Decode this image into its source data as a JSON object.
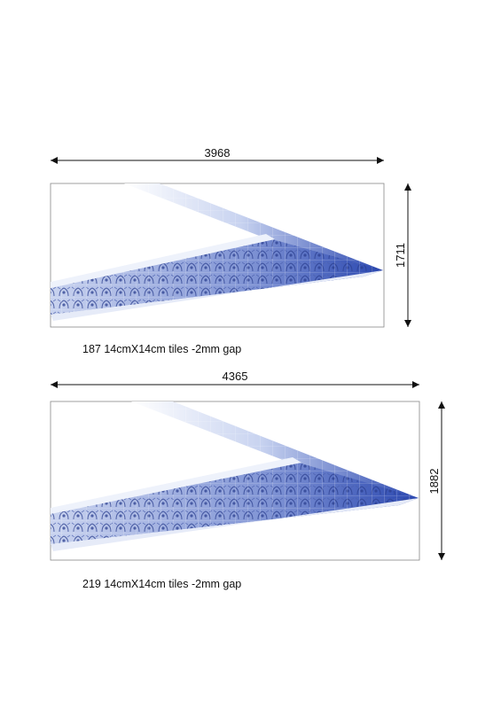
{
  "panels": [
    {
      "width_label": "3968",
      "height_label": "1711",
      "caption": "187 14cmX14cm tiles -2mm gap"
    },
    {
      "width_label": "4365",
      "height_label": "1882",
      "caption": "219 14cmX14cm tiles -2mm gap"
    }
  ],
  "colors": {
    "tile_blue": "#2f4fb8",
    "light_blue": "#dde4f6",
    "line": "#222222",
    "frame": "#888888"
  }
}
